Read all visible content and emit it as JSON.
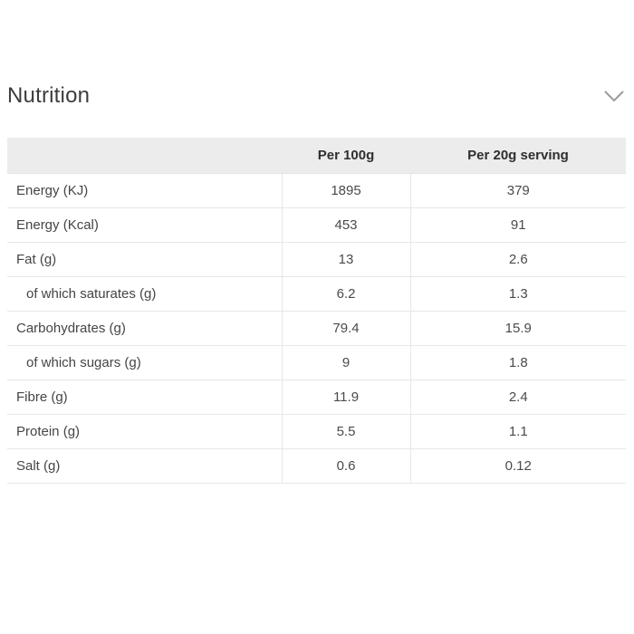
{
  "section": {
    "title": "Nutrition",
    "expanded_indicator": "chevron-down"
  },
  "table": {
    "columns": [
      "",
      "Per 100g",
      "Per 20g serving"
    ],
    "rows": [
      {
        "label": "Energy (KJ)",
        "per_100g": "1895",
        "per_serving": "379",
        "indent": false
      },
      {
        "label": "Energy (Kcal)",
        "per_100g": "453",
        "per_serving": "91",
        "indent": false
      },
      {
        "label": "Fat (g)",
        "per_100g": "13",
        "per_serving": "2.6",
        "indent": false
      },
      {
        "label": "of which saturates (g)",
        "per_100g": "6.2",
        "per_serving": "1.3",
        "indent": true
      },
      {
        "label": "Carbohydrates (g)",
        "per_100g": "79.4",
        "per_serving": "15.9",
        "indent": false
      },
      {
        "label": "of which sugars (g)",
        "per_100g": "9",
        "per_serving": "1.8",
        "indent": true
      },
      {
        "label": "Fibre (g)",
        "per_100g": "11.9",
        "per_serving": "2.4",
        "indent": false
      },
      {
        "label": "Protein (g)",
        "per_100g": "5.5",
        "per_serving": "1.1",
        "indent": false
      },
      {
        "label": "Salt (g)",
        "per_100g": "0.6",
        "per_serving": "0.12",
        "indent": false
      }
    ]
  },
  "colors": {
    "header_bg": "#ececec",
    "row_border": "#e7e7e7",
    "body_text": "#454545",
    "title_text": "#3d3d3d",
    "chevron": "#9b9b9b"
  }
}
